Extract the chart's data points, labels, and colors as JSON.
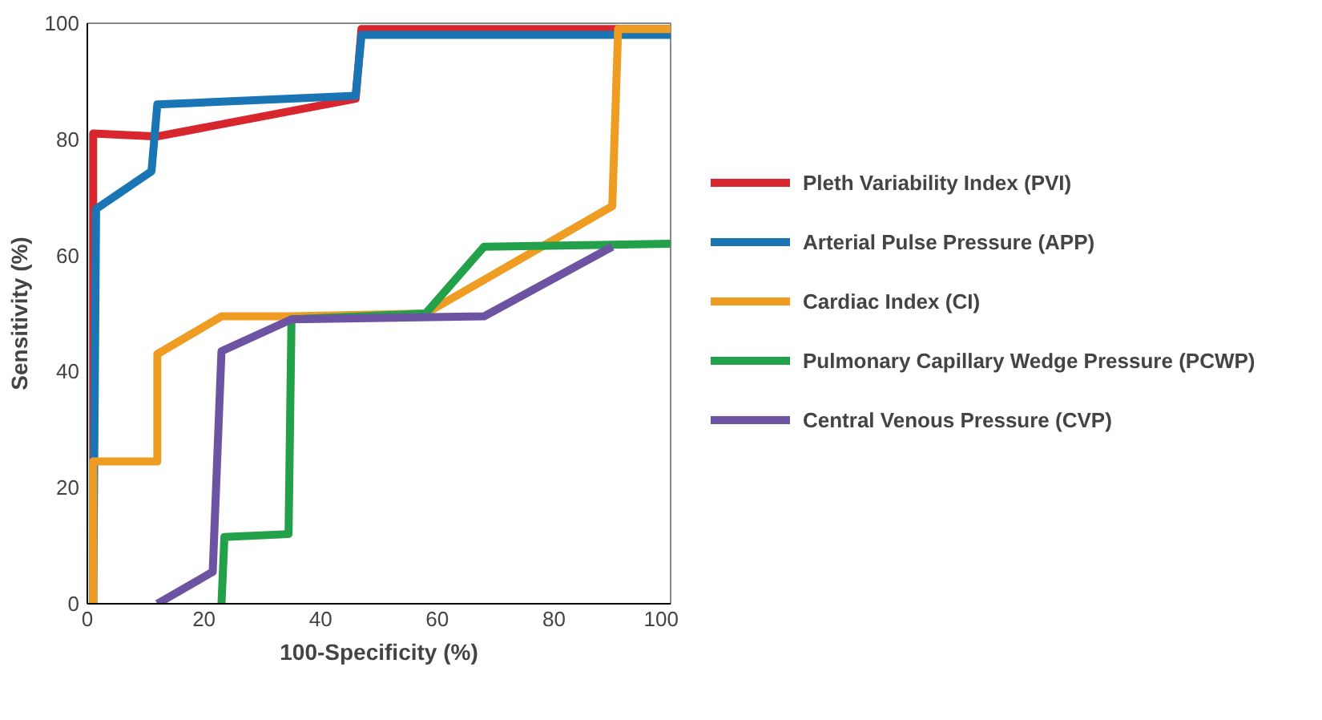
{
  "chart_data": {
    "type": "line",
    "xlabel": "100-Specificity (%)",
    "ylabel": "Sensitivity (%)",
    "xlim": [
      0,
      100
    ],
    "ylim": [
      0,
      100
    ],
    "xticks": [
      0,
      20,
      40,
      60,
      80,
      100
    ],
    "yticks": [
      0,
      20,
      40,
      60,
      80,
      100
    ],
    "grid": false,
    "legend": "right",
    "marker": "none",
    "line_style": "solid",
    "series": [
      {
        "name": "Pleth Variability Index (PVI)",
        "color": "#d7262e",
        "x": [
          1,
          1,
          12,
          46,
          47,
          100
        ],
        "values": [
          0,
          81,
          80.5,
          87,
          99,
          99
        ]
      },
      {
        "name": "Arterial Pulse Pressure (APP)",
        "color": "#1a75b5",
        "x": [
          1,
          1.5,
          11,
          12,
          46,
          47,
          100
        ],
        "values": [
          0,
          68,
          74.5,
          86,
          87.5,
          98,
          98
        ]
      },
      {
        "name": "Cardiac Index (CI)",
        "color": "#ef9d22",
        "x": [
          1,
          1,
          12,
          12,
          23,
          35,
          58,
          90,
          91,
          100
        ],
        "values": [
          0,
          24.5,
          24.5,
          43,
          49.5,
          49.5,
          50,
          68.5,
          99,
          99
        ]
      },
      {
        "name": "Pulmonary Capillary Wedge Pressure (PCWP)",
        "color": "#22a04a",
        "x": [
          23,
          23.5,
          34.5,
          35,
          58,
          68,
          100
        ],
        "values": [
          0,
          11.5,
          12,
          49,
          50,
          61.5,
          62
        ]
      },
      {
        "name": "Central Venous Pressure (CVP)",
        "color": "#6c54a3",
        "x": [
          12,
          21.5,
          23,
          35,
          68,
          90
        ],
        "values": [
          0,
          5.5,
          43.5,
          49,
          49.5,
          61.5
        ]
      }
    ]
  }
}
